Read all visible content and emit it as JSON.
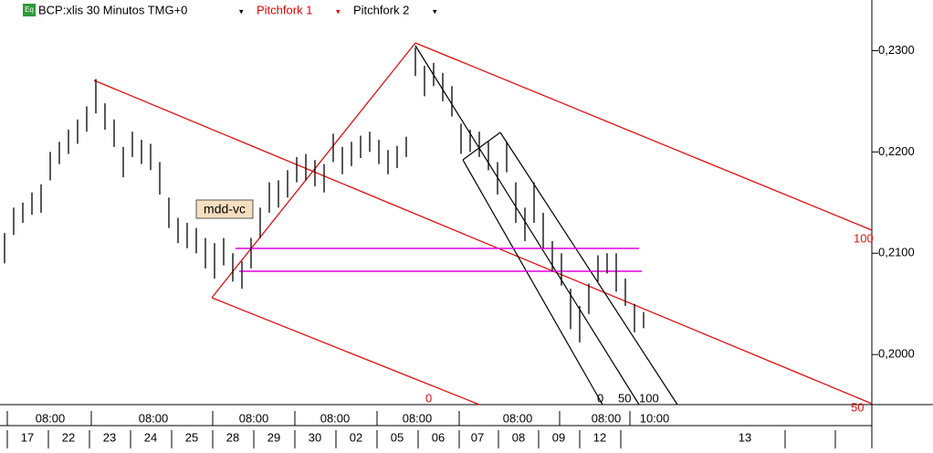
{
  "header": {
    "icon": "Eq",
    "title": "BCP:xlis 30 Minutos TMG+0",
    "studies": [
      "Pitchfork 1",
      "Pitchfork 2"
    ]
  },
  "chart_data": {
    "type": "ohlc",
    "high": [
      0.212,
      0.2145,
      0.215,
      0.216,
      0.2168,
      0.22,
      0.221,
      0.2222,
      0.2232,
      0.2245,
      0.2272,
      0.2248,
      0.2232,
      0.2205,
      0.222,
      0.2212,
      0.2208,
      0.219,
      0.2155,
      0.2135,
      0.213,
      0.2125,
      0.2115,
      0.211,
      0.2115,
      0.21,
      0.2092,
      0.2115,
      0.2145,
      0.217,
      0.2172,
      0.2182,
      0.2195,
      0.2198,
      0.2192,
      0.2188,
      0.2218,
      0.2205,
      0.221,
      0.2216,
      0.222,
      0.2212,
      0.2202,
      0.2206,
      0.2215,
      0.2303,
      0.2285,
      0.2288,
      0.2278,
      0.2265,
      0.2228,
      0.2222,
      0.222,
      0.221,
      0.219,
      0.221,
      0.217,
      0.2145,
      0.217,
      0.214,
      0.2112,
      0.21,
      0.2065,
      0.2048,
      0.207,
      0.2098,
      0.21,
      0.21,
      0.2075,
      0.205,
      0.2042
    ],
    "low": [
      0.209,
      0.2118,
      0.213,
      0.2138,
      0.214,
      0.2172,
      0.2188,
      0.2198,
      0.2208,
      0.222,
      0.2238,
      0.2222,
      0.2205,
      0.2175,
      0.2195,
      0.2188,
      0.2182,
      0.2158,
      0.2125,
      0.211,
      0.2105,
      0.21,
      0.2085,
      0.2075,
      0.2088,
      0.2072,
      0.2065,
      0.2085,
      0.2115,
      0.214,
      0.2145,
      0.2155,
      0.217,
      0.2172,
      0.2166,
      0.216,
      0.219,
      0.2178,
      0.2186,
      0.2194,
      0.22,
      0.2188,
      0.2178,
      0.2184,
      0.2195,
      0.2275,
      0.2255,
      0.2265,
      0.225,
      0.2235,
      0.2198,
      0.22,
      0.2195,
      0.2182,
      0.2158,
      0.218,
      0.213,
      0.2112,
      0.213,
      0.2105,
      0.2082,
      0.2068,
      0.2025,
      0.2012,
      0.204,
      0.2072,
      0.208,
      0.2062,
      0.2048,
      0.2022,
      0.2026
    ],
    "color": "#000000",
    "ylim": [
      0.1956,
      0.235
    ],
    "yticks": [
      {
        "value": 0.2,
        "label": "0,2000"
      },
      {
        "value": 0.21,
        "label": "0,2100"
      },
      {
        "value": 0.22,
        "label": "0,2200"
      },
      {
        "value": 0.23,
        "label": "0,2300"
      }
    ],
    "time_labels": [
      "08:00",
      "08:00",
      "08:00",
      "08:00",
      "08:00",
      "08:00",
      "08:00",
      "10:00"
    ],
    "date_labels": [
      "17",
      "22",
      "23",
      "24",
      "25",
      "28",
      "29",
      "30",
      "02",
      "05",
      "06",
      "07",
      "08",
      "09",
      "12",
      "13"
    ],
    "annotations": {
      "marker": "mdd-vc",
      "pitchfork1_levels": [
        "100",
        "50",
        "0"
      ],
      "pitchfork2_levels": [
        "0",
        "50",
        "100"
      ]
    }
  }
}
